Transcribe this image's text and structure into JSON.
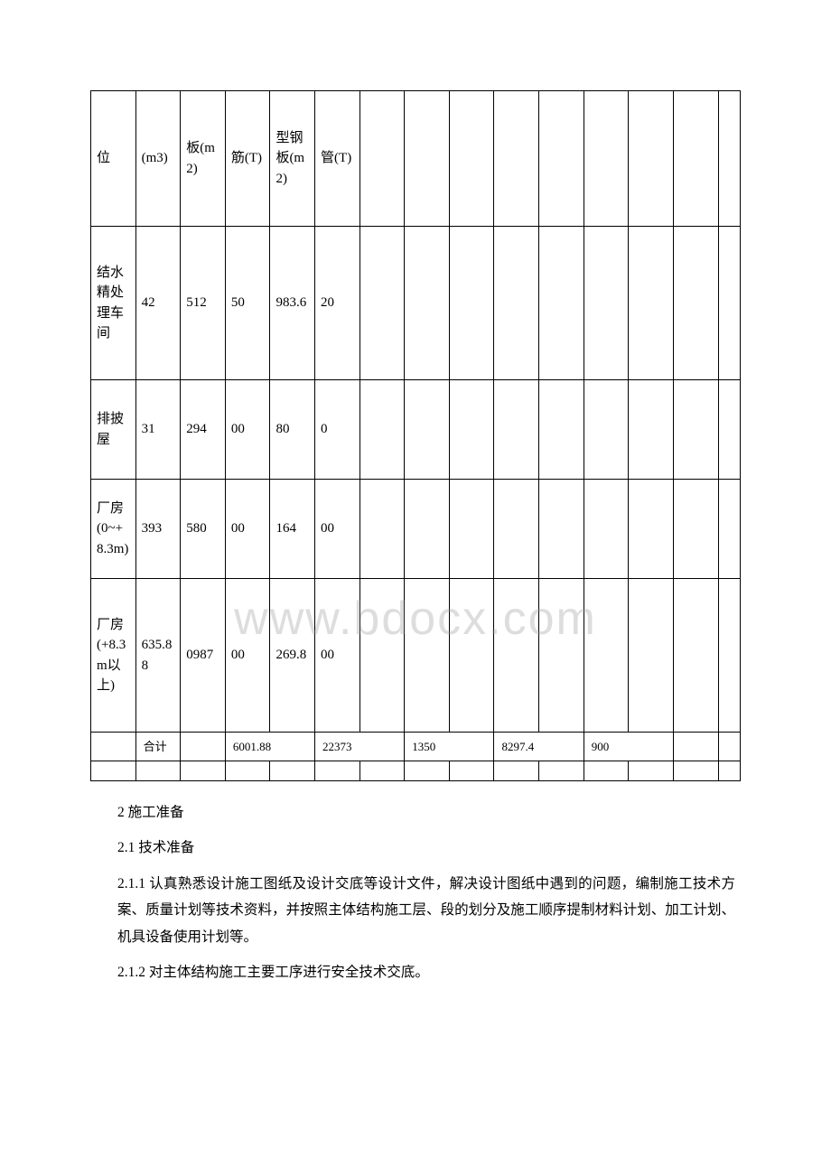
{
  "watermark": "www.bdocx.com",
  "table": {
    "header": [
      "位",
      "(m3)",
      "板(m2)",
      "筋(T)",
      "型钢板(m2)",
      "管(T)",
      "",
      "",
      "",
      "",
      "",
      "",
      "",
      "",
      ""
    ],
    "rows": [
      [
        "结水精处理车间",
        "42",
        "512",
        "50",
        "983.6",
        "20",
        "",
        "",
        "",
        "",
        "",
        "",
        "",
        "",
        ""
      ],
      [
        "排披屋",
        "31",
        "294",
        "00",
        "80",
        "0",
        "",
        "",
        "",
        "",
        "",
        "",
        "",
        "",
        ""
      ],
      [
        "厂房(0~+8.3m)",
        "393",
        "580",
        "00",
        "164",
        "00",
        "",
        "",
        "",
        "",
        "",
        "",
        "",
        "",
        ""
      ],
      [
        "厂房(+8.3m以上)",
        "635.88",
        "0987",
        "00",
        "269.8",
        "00",
        "",
        "",
        "",
        "",
        "",
        "",
        "",
        "",
        ""
      ]
    ],
    "summary": {
      "label": "合计",
      "values": [
        "6001.88",
        "22373",
        "1350",
        "8297.4",
        "900"
      ]
    }
  },
  "paragraphs": [
    "2 施工准备",
    "2.1 技术准备",
    "2.1.1 认真熟悉设计施工图纸及设计交底等设计文件，解决设计图纸中遇到的问题，编制施工技术方案、质量计划等技术资料，并按照主体结构施工层、段的划分及施工顺序提制材料计划、加工计划、机具设备使用计划等。",
    "2.1.2 对主体结构施工主要工序进行安全技术交底。"
  ]
}
